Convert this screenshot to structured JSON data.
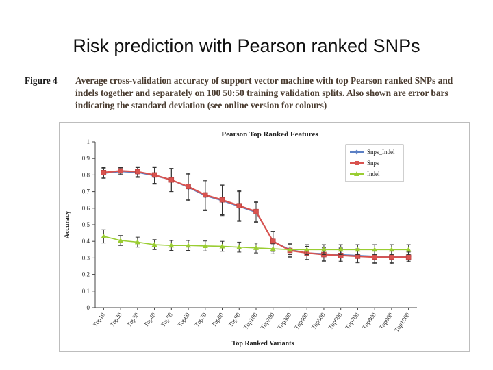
{
  "slide": {
    "title": "Risk prediction with Pearson ranked SNPs"
  },
  "figure": {
    "label": "Figure 4",
    "caption": "Average cross-validation accuracy of support vector machine with top Pearson ranked SNPs and indels together and separately on 100 50:50 training validation splits. Also shown are error bars indicating the standard deviation (see online version for colours)"
  },
  "chart_data": {
    "type": "line",
    "title": "Pearson Top Ranked Features",
    "xlabel": "Top Ranked Variants",
    "ylabel": "Accuracy",
    "ylim": [
      0,
      1
    ],
    "yticks": [
      "0",
      "0.1",
      "0.2",
      "0.3",
      "0.4",
      "0.5",
      "0.6",
      "0.7",
      "0.8",
      "0.9",
      "1"
    ],
    "grid": false,
    "legend_position": "top-right",
    "categories": [
      "Top10",
      "Top20",
      "Top30",
      "Top40",
      "Top50",
      "Top60",
      "Top70",
      "Top80",
      "Top90",
      "Top100",
      "Top200",
      "Top300",
      "Top400",
      "Top500",
      "Top600",
      "Top700",
      "Top800",
      "Top900",
      "Top1000"
    ],
    "series": [
      {
        "name": "Snps_Indel",
        "color": "#5b7fc4",
        "marker": "diamond",
        "values": [
          0.81,
          0.82,
          0.815,
          0.795,
          0.77,
          0.725,
          0.675,
          0.645,
          0.61,
          0.575,
          0.4,
          0.35,
          0.33,
          0.325,
          0.32,
          0.315,
          0.31,
          0.31,
          0.31
        ],
        "errors": [
          0.03,
          0.02,
          0.03,
          0.05,
          0.07,
          0.08,
          0.09,
          0.09,
          0.09,
          0.06,
          0.06,
          0.04,
          0.04,
          0.04,
          0.04,
          0.04,
          0.04,
          0.04,
          0.03
        ]
      },
      {
        "name": "Snps",
        "color": "#d9534f",
        "marker": "square",
        "values": [
          0.815,
          0.825,
          0.82,
          0.8,
          0.77,
          0.73,
          0.68,
          0.65,
          0.615,
          0.58,
          0.4,
          0.345,
          0.33,
          0.32,
          0.315,
          0.31,
          0.305,
          0.305,
          0.305
        ],
        "errors": [
          0.03,
          0.02,
          0.03,
          0.05,
          0.07,
          0.08,
          0.09,
          0.09,
          0.09,
          0.06,
          0.06,
          0.04,
          0.04,
          0.04,
          0.04,
          0.04,
          0.04,
          0.04,
          0.03
        ]
      },
      {
        "name": "Indel",
        "color": "#9acd32",
        "marker": "triangle",
        "values": [
          0.43,
          0.405,
          0.395,
          0.38,
          0.375,
          0.375,
          0.372,
          0.37,
          0.365,
          0.36,
          0.355,
          0.35,
          0.35,
          0.35,
          0.35,
          0.35,
          0.35,
          0.35,
          0.35
        ],
        "errors": [
          0.04,
          0.03,
          0.03,
          0.03,
          0.03,
          0.03,
          0.03,
          0.03,
          0.03,
          0.03,
          0.03,
          0.03,
          0.03,
          0.03,
          0.03,
          0.03,
          0.03,
          0.03,
          0.03
        ]
      }
    ]
  }
}
